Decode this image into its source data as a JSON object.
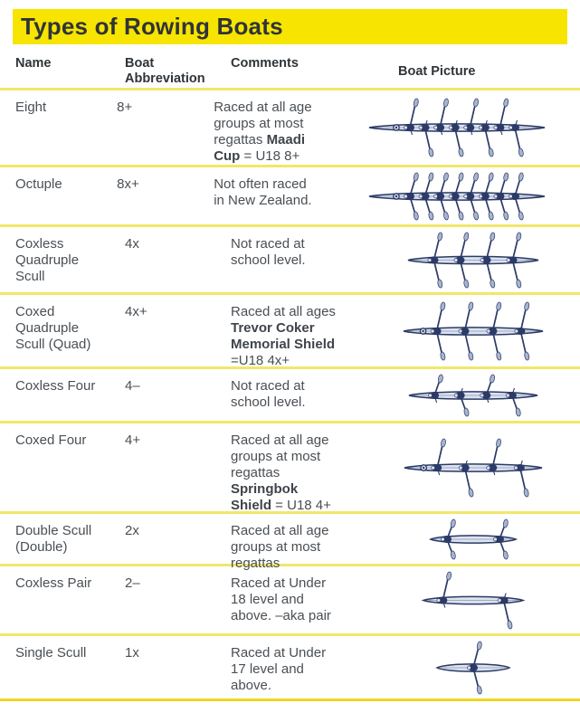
{
  "title": "Types of Rowing Boats",
  "columns": {
    "name": "Name",
    "abbreviation": "Boat Abbreviation",
    "comments": "Comments",
    "picture": "Boat Picture"
  },
  "theme": {
    "banner_yellow": "#f7e400",
    "divider_yellow": "#f1e76a",
    "divider_strong": "#efd71c",
    "heading_dark": "#2f3438",
    "text_dark": "#4a4f54",
    "boat_navy": "#2b3a66",
    "boat_blade": "#a8b4cf",
    "boat_hull_fill": "#dde3ef"
  },
  "rows": [
    {
      "name": "Eight",
      "abbreviation": "8+",
      "comments": [
        {
          "text": "Raced at all age\ngroups at most\nregattas ",
          "bold": false
        },
        {
          "text": "Maadi\nCup",
          "bold": true
        },
        {
          "text": " = U18 8+",
          "bold": false
        }
      ],
      "boat": {
        "label": "coxed-eight",
        "rowers": 8,
        "scull": false,
        "cox": true
      }
    },
    {
      "name": "Octuple",
      "abbreviation": "8x+",
      "comments": [
        {
          "text": "Not often raced\nin New Zealand.",
          "bold": false
        }
      ],
      "boat": {
        "label": "coxed-octuple",
        "rowers": 8,
        "scull": true,
        "cox": true
      }
    },
    {
      "name": "Coxless Quadruple Scull",
      "abbreviation": "4x",
      "comments": [
        {
          "text": "Not raced at\nschool level.",
          "bold": false
        }
      ],
      "boat": {
        "label": "coxless-quadruple-scull",
        "rowers": 4,
        "scull": true,
        "cox": false
      }
    },
    {
      "name": "Coxed Quadruple Scull (Quad)",
      "abbreviation": "4x+",
      "comments": [
        {
          "text": "Raced at all ages\n",
          "bold": false
        },
        {
          "text": "Trevor Coker\nMemorial Shield",
          "bold": true
        },
        {
          "text": "\n=U18 4x+",
          "bold": false
        }
      ],
      "boat": {
        "label": "coxed-quadruple-scull",
        "rowers": 4,
        "scull": true,
        "cox": true
      }
    },
    {
      "name": "Coxless Four",
      "abbreviation": "4–",
      "comments": [
        {
          "text": "Not raced at\nschool level.",
          "bold": false
        }
      ],
      "boat": {
        "label": "coxless-four",
        "rowers": 4,
        "scull": false,
        "cox": false
      }
    },
    {
      "name": "Coxed Four",
      "abbreviation": "4+",
      "comments": [
        {
          "text": "Raced at all age\ngroups at most\nregattas\n",
          "bold": false
        },
        {
          "text": "Springbok\nShield",
          "bold": true
        },
        {
          "text": " = U18 4+",
          "bold": false
        }
      ],
      "boat": {
        "label": "coxed-four",
        "rowers": 4,
        "scull": false,
        "cox": true
      }
    },
    {
      "name": "Double Scull (Double)",
      "abbreviation": "2x",
      "comments": [
        {
          "text": "Raced at all age\ngroups at most\nregattas",
          "bold": false
        }
      ],
      "boat": {
        "label": "double-scull",
        "rowers": 2,
        "scull": true,
        "cox": false
      }
    },
    {
      "name": "Coxless Pair",
      "abbreviation": "2–",
      "comments": [
        {
          "text": "Raced at Under\n18 level and\nabove. –aka pair",
          "bold": false
        }
      ],
      "boat": {
        "label": "coxless-pair",
        "rowers": 2,
        "scull": false,
        "cox": false
      }
    },
    {
      "name": "Single Scull",
      "abbreviation": "1x",
      "comments": [
        {
          "text": "Raced at Under\n17 level and\nabove.",
          "bold": false
        }
      ],
      "boat": {
        "label": "single-scull",
        "rowers": 1,
        "scull": true,
        "cox": false
      }
    }
  ]
}
